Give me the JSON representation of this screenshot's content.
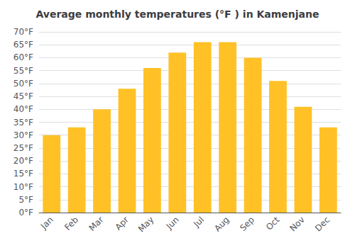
{
  "chart_data": {
    "type": "bar",
    "title": "Average monthly temperatures (°F ) in Kamenjane",
    "categories": [
      "Jan",
      "Feb",
      "Mar",
      "Apr",
      "May",
      "Jun",
      "Jul",
      "Aug",
      "Sep",
      "Oct",
      "Nov",
      "Dec"
    ],
    "values": [
      30,
      33,
      40,
      48,
      56,
      62,
      66,
      66,
      60,
      51,
      41,
      33
    ],
    "color": "#FFC125",
    "ylim": [
      0,
      70
    ],
    "yticks": [
      {
        "value": 0,
        "label": "0°F"
      },
      {
        "value": 5,
        "label": "5°F"
      },
      {
        "value": 10,
        "label": "10°F"
      },
      {
        "value": 15,
        "label": "15°F"
      },
      {
        "value": 20,
        "label": "20°F"
      },
      {
        "value": 25,
        "label": "25°F"
      },
      {
        "value": 30,
        "label": "30°F"
      },
      {
        "value": 35,
        "label": "35°F"
      },
      {
        "value": 40,
        "label": "40°F"
      },
      {
        "value": 45,
        "label": "45°F"
      },
      {
        "value": 50,
        "label": "50°F"
      },
      {
        "value": 55,
        "label": "55°F"
      },
      {
        "value": 60,
        "label": "60°F"
      },
      {
        "value": 65,
        "label": "65°F"
      },
      {
        "value": 70,
        "label": "70°F"
      }
    ],
    "grid": true
  }
}
